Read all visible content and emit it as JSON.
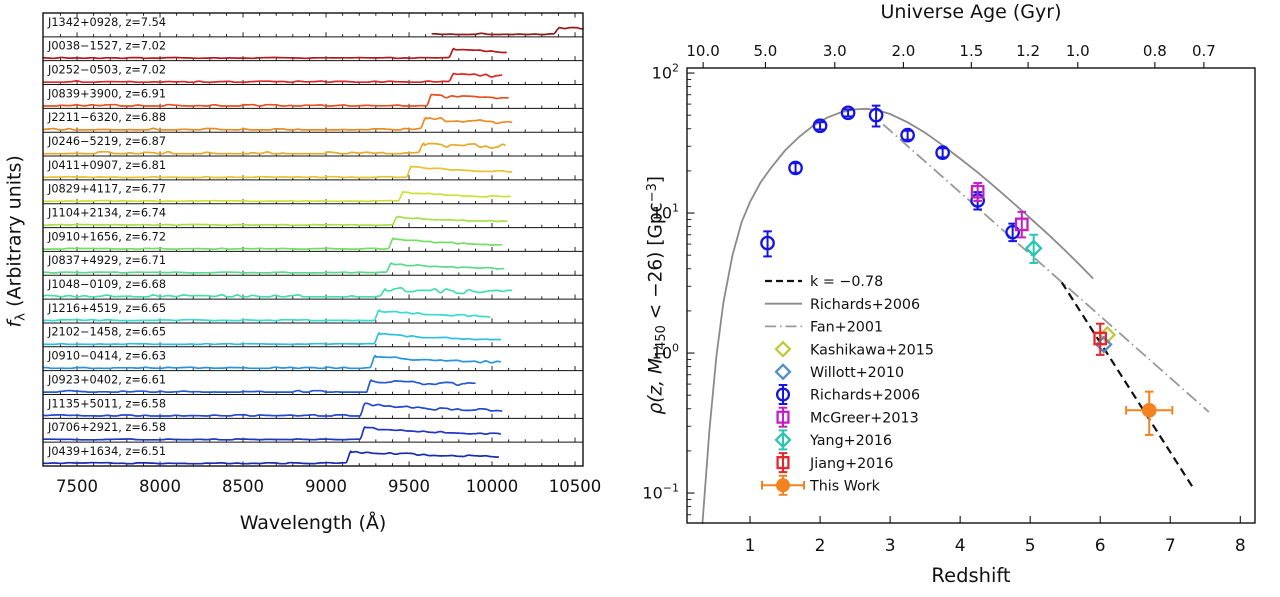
{
  "chart_data": [
    {
      "type": "line",
      "panel": "quasar-spectra-stack",
      "xlabel": "Wavelength (Å)",
      "ylabel": {
        "prefix": "f",
        "sub": "λ",
        "suffix": " (Arbitrary units)"
      },
      "xlim": [
        7295,
        10548
      ],
      "x_ticks": [
        7500,
        8000,
        8500,
        9000,
        9500,
        10000,
        10500
      ],
      "minor_tick_step": 100,
      "lya_rest": 1215.67,
      "label_separator": ", z=",
      "spectra": [
        {
          "name": "J1342+0928",
          "z": 7.54,
          "color": "#8f1d1d",
          "start": 9640,
          "end": 10548,
          "peak": 6.0,
          "noise": 1.6,
          "decay": 5000,
          "floor": 0.5
        },
        {
          "name": "J0038−1527",
          "z": 7.02,
          "color": "#b31b1b",
          "start": 7295,
          "end": 10085,
          "peak": 9.5,
          "noise": 0.9,
          "decay": 500,
          "floor": 0.34
        },
        {
          "name": "J0252−0503",
          "z": 7.02,
          "color": "#dd2626",
          "start": 7295,
          "end": 10060,
          "peak": 8.5,
          "noise": 1.6,
          "decay": 550,
          "floor": 0.36
        },
        {
          "name": "J0839+3900",
          "z": 6.91,
          "color": "#e8511e",
          "start": 7295,
          "end": 10100,
          "peak": 11.0,
          "noise": 1.9,
          "decay": 650,
          "floor": 0.38
        },
        {
          "name": "J2211−6320",
          "z": 6.88,
          "color": "#ec8b22",
          "start": 7295,
          "end": 10120,
          "peak": 11.5,
          "noise": 2.1,
          "decay": 700,
          "floor": 0.36
        },
        {
          "name": "J0246−5219",
          "z": 6.87,
          "color": "#e8a92d",
          "start": 7295,
          "end": 10080,
          "peak": 10.0,
          "noise": 3.0,
          "decay": 800,
          "floor": 0.38
        },
        {
          "name": "J0411+0907",
          "z": 6.81,
          "color": "#e3c434",
          "start": 7295,
          "end": 10120,
          "peak": 11.0,
          "noise": 0.9,
          "decay": 520,
          "floor": 0.34
        },
        {
          "name": "J0829+4117",
          "z": 6.77,
          "color": "#cfe03a",
          "start": 7295,
          "end": 10110,
          "peak": 9.5,
          "noise": 0.8,
          "decay": 480,
          "floor": 0.32
        },
        {
          "name": "J1104+2134",
          "z": 6.74,
          "color": "#a8e04a",
          "start": 7295,
          "end": 10090,
          "peak": 8.5,
          "noise": 0.7,
          "decay": 460,
          "floor": 0.32
        },
        {
          "name": "J0910+1656",
          "z": 6.72,
          "color": "#77dd68",
          "start": 7295,
          "end": 10060,
          "peak": 10.5,
          "noise": 0.9,
          "decay": 420,
          "floor": 0.3
        },
        {
          "name": "J0837+4929",
          "z": 6.71,
          "color": "#5bda8c",
          "start": 7295,
          "end": 10070,
          "peak": 9.5,
          "noise": 0.9,
          "decay": 480,
          "floor": 0.32
        },
        {
          "name": "J1048−0109",
          "z": 6.68,
          "color": "#46dcae",
          "start": 7295,
          "end": 10120,
          "peak": 7.5,
          "noise": 2.9,
          "decay": 900,
          "floor": 0.4
        },
        {
          "name": "J1216+4519",
          "z": 6.65,
          "color": "#38dcd0",
          "start": 7295,
          "end": 9985,
          "peak": 10.0,
          "noise": 1.1,
          "decay": 430,
          "floor": 0.32
        },
        {
          "name": "J2102−1458",
          "z": 6.65,
          "color": "#30bfe2",
          "start": 7295,
          "end": 10050,
          "peak": 11.0,
          "noise": 0.9,
          "decay": 480,
          "floor": 0.32
        },
        {
          "name": "J0910−0414",
          "z": 6.63,
          "color": "#2a93e0",
          "start": 7295,
          "end": 10050,
          "peak": 12.0,
          "noise": 1.3,
          "decay": 600,
          "floor": 0.34
        },
        {
          "name": "J0923+0402",
          "z": 6.61,
          "color": "#2559d5",
          "start": 7295,
          "end": 9900,
          "peak": 11.5,
          "noise": 2.3,
          "decay": 800,
          "floor": 0.4
        },
        {
          "name": "J1135+5011",
          "z": 6.58,
          "color": "#2447cf",
          "start": 7295,
          "end": 10060,
          "peak": 12.0,
          "noise": 1.6,
          "decay": 520,
          "floor": 0.34
        },
        {
          "name": "J0706+2921",
          "z": 6.58,
          "color": "#1f37c4",
          "start": 7295,
          "end": 10050,
          "peak": 12.5,
          "noise": 1.0,
          "decay": 560,
          "floor": 0.33
        },
        {
          "name": "J0439+1634",
          "z": 6.51,
          "color": "#1b2cb0",
          "start": 7295,
          "end": 10040,
          "peak": 12.0,
          "noise": 1.2,
          "decay": 900,
          "floor": 0.42
        }
      ]
    },
    {
      "type": "scatter",
      "panel": "quasar-density-vs-redshift",
      "xlabel": "Redshift",
      "ylabel": {
        "prefix": "ρ(z, M",
        "sub": "1450",
        "mid": " < −26) [Gpc",
        "sup": "−3",
        "suffix": "]"
      },
      "top_axis": {
        "label": "Universe Age (Gyr)",
        "ticks": [
          {
            "label": "10.0",
            "z": 0.33
          },
          {
            "label": "5.0",
            "z": 1.22
          },
          {
            "label": "3.0",
            "z": 2.21
          },
          {
            "label": "2.0",
            "z": 3.19
          },
          {
            "label": "1.5",
            "z": 4.16
          },
          {
            "label": "1.2",
            "z": 4.97
          },
          {
            "label": "1.0",
            "z": 5.68
          },
          {
            "label": "0.8",
            "z": 6.78
          },
          {
            "label": "0.7",
            "z": 7.48
          }
        ]
      },
      "xlim": [
        0.1,
        8.21
      ],
      "ylim_log": [
        -1.214,
        2.036
      ],
      "x_ticks": [
        1,
        2,
        3,
        4,
        5,
        6,
        7,
        8
      ],
      "y_ticks_exp": [
        2,
        1,
        0,
        -1
      ],
      "grid": false,
      "curves": [
        {
          "name": "Richards+2006",
          "style": "solid",
          "color": "#8a8a8a",
          "points": [
            [
              0.32,
              0.06
            ],
            [
              0.42,
              0.28
            ],
            [
              0.52,
              0.95
            ],
            [
              0.62,
              2.3
            ],
            [
              0.75,
              5.0
            ],
            [
              0.88,
              8.6
            ],
            [
              1.0,
              12.0
            ],
            [
              1.15,
              16.5
            ],
            [
              1.3,
              21
            ],
            [
              1.5,
              28
            ],
            [
              1.7,
              35
            ],
            [
              1.9,
              42
            ],
            [
              2.1,
              48
            ],
            [
              2.3,
              52.5
            ],
            [
              2.5,
              55
            ],
            [
              2.65,
              55.5
            ],
            [
              2.8,
              54.5
            ],
            [
              3.0,
              51
            ],
            [
              3.25,
              44.5
            ],
            [
              3.5,
              37.5
            ],
            [
              3.75,
              30.5
            ],
            [
              4.0,
              24.5
            ],
            [
              4.25,
              19.5
            ],
            [
              4.5,
              15.3
            ],
            [
              4.75,
              11.9
            ],
            [
              5.0,
              9.2
            ],
            [
              5.25,
              7.1
            ],
            [
              5.5,
              5.4
            ],
            [
              5.7,
              4.3
            ],
            [
              5.9,
              3.4
            ]
          ]
        },
        {
          "name": "Fan+2001",
          "style": "dashdot",
          "color": "#999999",
          "points": [
            [
              2.9,
              43.0
            ],
            [
              7.55,
              0.38
            ]
          ]
        },
        {
          "name": "k = −0.78",
          "style": "dashed",
          "color": "#111111",
          "points": [
            [
              5.45,
              3.2
            ],
            [
              7.32,
              0.11
            ]
          ]
        }
      ],
      "series": [
        {
          "name": "Kashikawa+2015",
          "marker": "diamond",
          "filled": false,
          "color": "#c3c83a",
          "points": [
            {
              "z": 6.1,
              "rho": 1.35
            }
          ]
        },
        {
          "name": "Willott+2010",
          "marker": "diamond",
          "filled": false,
          "color": "#4f8fc4",
          "points": [
            {
              "z": 6.05,
              "rho": 1.15
            }
          ]
        },
        {
          "name": "Richards+2006",
          "marker": "circle",
          "filled": false,
          "color": "#1414e6",
          "points": [
            {
              "z": 1.25,
              "rho": 6.1,
              "lo": 4.9,
              "hi": 7.4
            },
            {
              "z": 1.65,
              "rho": 21,
              "lo": 19.4,
              "hi": 22.7
            },
            {
              "z": 2.0,
              "rho": 42,
              "lo": 39.5,
              "hi": 44.6
            },
            {
              "z": 2.4,
              "rho": 52,
              "lo": 49,
              "hi": 55
            },
            {
              "z": 2.8,
              "rho": 50,
              "lo": 41.5,
              "hi": 58.5
            },
            {
              "z": 3.25,
              "rho": 36,
              "lo": 33.4,
              "hi": 38.7
            },
            {
              "z": 3.75,
              "rho": 27,
              "lo": 25,
              "hi": 29
            },
            {
              "z": 4.25,
              "rho": 12.3,
              "lo": 10.6,
              "hi": 14.1
            },
            {
              "z": 4.75,
              "rho": 7.3,
              "lo": 6.3,
              "hi": 8.4
            }
          ]
        },
        {
          "name": "McGreer+2013",
          "marker": "square",
          "filled": false,
          "color": "#c41ec4",
          "points": [
            {
              "z": 4.25,
              "rho": 14.2,
              "lo": 12.2,
              "hi": 16.4
            },
            {
              "z": 4.88,
              "rho": 8.3,
              "lo": 6.7,
              "hi": 10.2
            }
          ]
        },
        {
          "name": "Yang+2016",
          "marker": "diamond",
          "filled": false,
          "color": "#26c6b2",
          "points": [
            {
              "z": 5.05,
              "rho": 5.6,
              "lo": 4.4,
              "hi": 7.0
            }
          ]
        },
        {
          "name": "Jiang+2016",
          "marker": "square",
          "filled": false,
          "color": "#e8252a",
          "points": [
            {
              "z": 6.0,
              "rho": 1.27,
              "lo": 0.97,
              "hi": 1.62
            }
          ]
        },
        {
          "name": "This Work",
          "marker": "circle",
          "filled": true,
          "color": "#f58220",
          "points": [
            {
              "z": 6.7,
              "rho": 0.39,
              "lo": 0.26,
              "hi": 0.53,
              "xlo": 6.37,
              "xhi": 7.03
            }
          ]
        }
      ],
      "legend": [
        {
          "sample": "dashed-line",
          "color": "#111111",
          "label": "k = −0.78"
        },
        {
          "sample": "solid-line",
          "color": "#8a8a8a",
          "label": "Richards+2006"
        },
        {
          "sample": "dashdot-line",
          "color": "#999999",
          "label": "Fan+2001"
        },
        {
          "sample": "diamond-open",
          "color": "#c3c83a",
          "label": "Kashikawa+2015",
          "errorbar": false
        },
        {
          "sample": "diamond-open",
          "color": "#4f8fc4",
          "label": "Willott+2010",
          "errorbar": false
        },
        {
          "sample": "circle-open",
          "color": "#1414e6",
          "label": "Richards+2006",
          "errorbar": true
        },
        {
          "sample": "square-open",
          "color": "#c41ec4",
          "label": "McGreer+2013",
          "errorbar": true
        },
        {
          "sample": "diamond-open",
          "color": "#26c6b2",
          "label": "Yang+2016",
          "errorbar": true
        },
        {
          "sample": "square-open",
          "color": "#e8252a",
          "label": "Jiang+2016",
          "errorbar": true
        },
        {
          "sample": "circle-filled",
          "color": "#f58220",
          "label": "This Work",
          "errorbar": true,
          "xerrbar": true
        }
      ]
    }
  ]
}
